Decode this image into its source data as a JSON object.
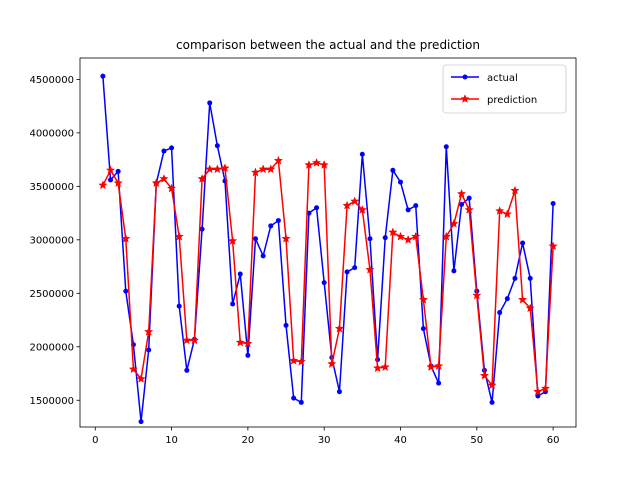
{
  "chart_data": {
    "type": "line",
    "title": "comparison between the actual and the prediction",
    "xlabel": "",
    "ylabel": "",
    "xlim": [
      -2,
      63
    ],
    "ylim": [
      1250000,
      4700000
    ],
    "x_ticks": [
      0,
      10,
      20,
      30,
      40,
      50,
      60
    ],
    "y_ticks": [
      1500000,
      2000000,
      2500000,
      3000000,
      3500000,
      4000000,
      4500000
    ],
    "grid": false,
    "legend_position": "upper right",
    "x": [
      1,
      2,
      3,
      4,
      5,
      6,
      7,
      8,
      9,
      10,
      11,
      12,
      13,
      14,
      15,
      16,
      17,
      18,
      19,
      20,
      21,
      22,
      23,
      24,
      25,
      26,
      27,
      28,
      29,
      30,
      31,
      32,
      33,
      34,
      35,
      36,
      37,
      38,
      39,
      40,
      41,
      42,
      43,
      44,
      45,
      46,
      47,
      48,
      49,
      50,
      51,
      52,
      53,
      54,
      55,
      56,
      57,
      58,
      59,
      60
    ],
    "series": [
      {
        "name": "actual",
        "color": "#0000ff",
        "marker": "circle",
        "values": [
          4530000,
          3560000,
          3640000,
          2520000,
          2020000,
          1300000,
          1970000,
          3530000,
          3830000,
          3860000,
          2380000,
          1780000,
          2070000,
          3100000,
          4280000,
          3880000,
          3550000,
          2400000,
          2680000,
          1920000,
          3010000,
          2850000,
          3130000,
          3180000,
          2200000,
          1520000,
          1480000,
          3250000,
          3300000,
          2600000,
          1900000,
          1580000,
          2700000,
          2740000,
          3800000,
          3010000,
          1880000,
          3020000,
          3650000,
          3540000,
          3280000,
          3320000,
          2170000,
          1820000,
          1660000,
          3870000,
          2710000,
          3330000,
          3390000,
          2520000,
          1780000,
          1480000,
          2320000,
          2450000,
          2640000,
          2970000,
          2640000,
          1540000,
          1580000,
          3340000
        ]
      },
      {
        "name": "prediction",
        "color": "#ff0000",
        "marker": "star",
        "values": [
          3510000,
          3650000,
          3530000,
          3010000,
          1790000,
          1700000,
          2140000,
          3530000,
          3570000,
          3480000,
          3030000,
          2060000,
          2060000,
          3570000,
          3660000,
          3660000,
          3670000,
          2990000,
          2040000,
          2030000,
          3630000,
          3660000,
          3660000,
          3740000,
          3010000,
          1870000,
          1860000,
          3700000,
          3720000,
          3700000,
          1840000,
          2170000,
          3320000,
          3360000,
          3280000,
          2720000,
          1800000,
          1810000,
          3070000,
          3030000,
          3000000,
          3030000,
          2440000,
          1810000,
          1820000,
          3030000,
          3150000,
          3430000,
          3280000,
          2480000,
          1730000,
          1640000,
          3270000,
          3240000,
          3460000,
          2440000,
          2360000,
          1580000,
          1610000,
          2940000
        ]
      }
    ]
  }
}
